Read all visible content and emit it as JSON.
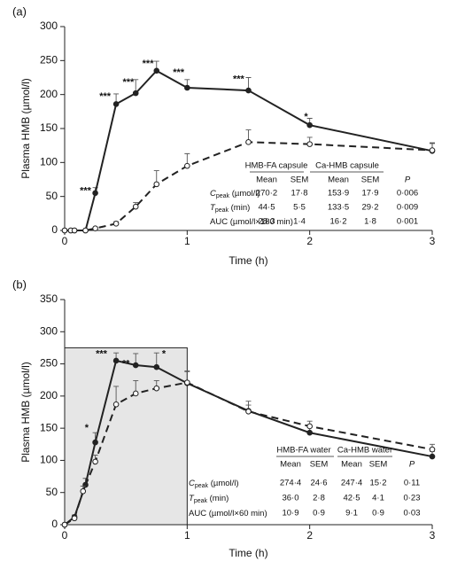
{
  "chart_data": [
    {
      "type": "line",
      "panel_label": "(a)",
      "xlabel": "Time (h)",
      "ylabel": "Plasma HMB (µmol/l)",
      "xlim": [
        0,
        3
      ],
      "ylim": [
        0,
        300
      ],
      "xticks": [
        0,
        1,
        2,
        3
      ],
      "yticks": [
        0,
        50,
        100,
        150,
        200,
        250,
        300
      ],
      "series": [
        {
          "name": "HMB-FA capsule",
          "color": "#222222",
          "dash": false,
          "marker": "filled",
          "x": [
            0,
            0.05,
            0.08,
            0.17,
            0.25,
            0.42,
            0.58,
            0.75,
            1,
            1.5,
            2,
            3
          ],
          "values": [
            0,
            0,
            0,
            0,
            55,
            186,
            202,
            235,
            210,
            206,
            155,
            117
          ],
          "errors": [
            null,
            null,
            null,
            null,
            8,
            15,
            20,
            14,
            12,
            19,
            10,
            12
          ]
        },
        {
          "name": "Ca-HMB capsule",
          "color": "#222222",
          "dash": true,
          "marker": "open",
          "x": [
            0,
            0.05,
            0.08,
            0.17,
            0.25,
            0.42,
            0.58,
            0.75,
            1,
            1.5,
            2,
            3
          ],
          "values": [
            0,
            0,
            0,
            0,
            3,
            10,
            35,
            68,
            95,
            130,
            127,
            118
          ],
          "errors": [
            null,
            null,
            null,
            null,
            null,
            3,
            6,
            20,
            18,
            18,
            10,
            10
          ]
        }
      ],
      "annotations": [
        {
          "x": 0.17,
          "y": 58,
          "text": "***"
        },
        {
          "x": 0.33,
          "y": 197,
          "text": "***"
        },
        {
          "x": 0.52,
          "y": 218,
          "text": "***"
        },
        {
          "x": 0.68,
          "y": 245,
          "text": "***"
        },
        {
          "x": 0.93,
          "y": 232,
          "text": "***"
        },
        {
          "x": 1.42,
          "y": 222,
          "text": "***"
        },
        {
          "x": 1.97,
          "y": 167,
          "text": "*"
        }
      ],
      "table": {
        "groups": [
          "HMB-FA capsule",
          "Ca-HMB capsule"
        ],
        "columns": [
          "Mean",
          "SEM",
          "Mean",
          "SEM",
          "P"
        ],
        "rows": [
          {
            "label": "C",
            "sub": "peak",
            "unit": " (µmol/l)",
            "cells": [
              "270·2",
              "17·8",
              "153·9",
              "17·9",
              "0·006"
            ]
          },
          {
            "label": "T",
            "sub": "peak",
            "unit": " (min)",
            "cells": [
              "44·5",
              "5·5",
              "133·5",
              "29·2",
              "0·009"
            ]
          },
          {
            "label": "AUC (µmol/l×180 min)",
            "cells": [
              "28·3",
              "1·4",
              "16·2",
              "1·8",
              "0·001"
            ]
          }
        ]
      }
    },
    {
      "type": "line",
      "panel_label": "(b)",
      "xlabel": "Time (h)",
      "ylabel": "Plasma HMB (µmol/l)",
      "xlim": [
        0,
        3
      ],
      "ylim": [
        0,
        350
      ],
      "xticks": [
        0,
        1,
        2,
        3
      ],
      "yticks": [
        0,
        50,
        100,
        150,
        200,
        250,
        300,
        350
      ],
      "highlight": {
        "xlim": [
          0,
          1
        ],
        "ylim": [
          0,
          275
        ]
      },
      "series": [
        {
          "name": "HMB-FA water",
          "color": "#222222",
          "dash": false,
          "marker": "filled",
          "x": [
            0,
            0.08,
            0.17,
            0.25,
            0.42,
            0.58,
            0.75,
            1,
            1.5,
            2,
            3
          ],
          "values": [
            0,
            12,
            62,
            128,
            255,
            248,
            245,
            220,
            177,
            143,
            106
          ],
          "errors": [
            null,
            3,
            10,
            15,
            12,
            18,
            22,
            18,
            15,
            10,
            8
          ]
        },
        {
          "name": "Ca-HMB water",
          "color": "#222222",
          "dash": true,
          "marker": "open",
          "x": [
            0,
            0.08,
            0.15,
            0.25,
            0.42,
            0.58,
            0.75,
            1,
            1.5,
            2,
            3
          ],
          "values": [
            0,
            10,
            52,
            98,
            187,
            204,
            212,
            221,
            176,
            153,
            117
          ],
          "errors": [
            null,
            3,
            8,
            10,
            28,
            20,
            12,
            18,
            10,
            8,
            8
          ]
        }
      ],
      "annotations": [
        {
          "x": 0.18,
          "y": 150,
          "text": "*"
        },
        {
          "x": 0.3,
          "y": 265,
          "text": "***"
        },
        {
          "x": 0.5,
          "y": 250,
          "text": "**"
        },
        {
          "x": 0.81,
          "y": 265,
          "text": "*"
        }
      ],
      "table": {
        "groups": [
          "HMB-FA water",
          "Ca-HMB water"
        ],
        "columns": [
          "Mean",
          "SEM",
          "Mean",
          "SEM",
          "P"
        ],
        "rows": [
          {
            "label": "C",
            "sub": "peak",
            "unit": " (µmol/l)",
            "cells": [
              "274·4",
              "24·6",
              "247·4",
              "15·2",
              "0·11"
            ]
          },
          {
            "label": "T",
            "sub": "peak",
            "unit": " (min)",
            "cells": [
              "36·0",
              "2·8",
              "42·5",
              "4·1",
              "0·23"
            ]
          },
          {
            "label": "AUC (µmol/l×60 min)",
            "cells": [
              "10·9",
              "0·9",
              "9·1",
              "0·9",
              "0·03"
            ]
          }
        ]
      }
    }
  ]
}
